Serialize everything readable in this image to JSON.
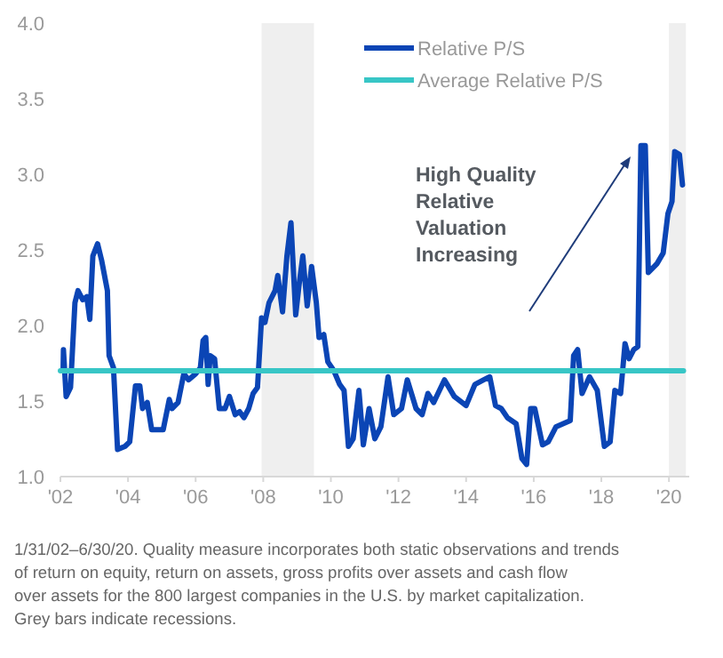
{
  "chart_data": {
    "type": "line",
    "xlim": [
      2002,
      2020.6
    ],
    "ylim": [
      1.0,
      4.0
    ],
    "xticks": [
      {
        "value": 2002,
        "label": "'02"
      },
      {
        "value": 2004,
        "label": "'04"
      },
      {
        "value": 2006,
        "label": "'06"
      },
      {
        "value": 2008,
        "label": "'08"
      },
      {
        "value": 2010,
        "label": "'10"
      },
      {
        "value": 2012,
        "label": "'12"
      },
      {
        "value": 2014,
        "label": "'14"
      },
      {
        "value": 2016,
        "label": "'16"
      },
      {
        "value": 2018,
        "label": "'18"
      },
      {
        "value": 2020,
        "label": "'20"
      }
    ],
    "yticks": [
      {
        "value": 1,
        "label": "1.0"
      },
      {
        "value": 1.5,
        "label": "1.5"
      },
      {
        "value": 2,
        "label": "2.0"
      },
      {
        "value": 2.5,
        "label": "2.5"
      },
      {
        "value": 3,
        "label": "3.0"
      },
      {
        "value": 3.5,
        "label": "3.5"
      },
      {
        "value": 4,
        "label": "4.0"
      }
    ],
    "legend": "top right",
    "grid": false,
    "marker": "none",
    "line_style": "solid",
    "bands": [
      {
        "axis": "x",
        "from": 2007.95,
        "to": 2009.5,
        "color": "#efefef"
      },
      {
        "axis": "x",
        "from": 2020.0,
        "to": 2020.5,
        "color": "#efefef"
      }
    ],
    "series": [
      {
        "name": "Relative P/S",
        "color": "#0b45b5",
        "x": [
          2002.08,
          2002.09,
          2002.17,
          2002.3,
          2002.43,
          2002.52,
          2002.66,
          2002.78,
          2002.87,
          2002.96,
          2003.1,
          2003.22,
          2003.39,
          2003.44,
          2003.57,
          2003.69,
          2003.91,
          2004.05,
          2004.22,
          2004.35,
          2004.43,
          2004.57,
          2004.7,
          2005.04,
          2005.22,
          2005.3,
          2005.48,
          2005.65,
          2005.79,
          2006.0,
          2006.14,
          2006.22,
          2006.3,
          2006.37,
          2006.43,
          2006.56,
          2006.7,
          2006.87,
          2007.0,
          2007.17,
          2007.3,
          2007.43,
          2007.57,
          2007.7,
          2007.83,
          2007.95,
          2008.05,
          2008.17,
          2008.35,
          2008.43,
          2008.57,
          2008.7,
          2008.82,
          2008.96,
          2009.06,
          2009.17,
          2009.3,
          2009.43,
          2009.57,
          2009.65,
          2009.79,
          2009.91,
          2010.09,
          2010.26,
          2010.39,
          2010.52,
          2010.66,
          2010.83,
          2010.96,
          2011.13,
          2011.3,
          2011.48,
          2011.69,
          2011.86,
          2012.09,
          2012.26,
          2012.52,
          2012.7,
          2012.87,
          2013.04,
          2013.36,
          2013.65,
          2014.0,
          2014.26,
          2014.52,
          2014.7,
          2014.87,
          2015.04,
          2015.22,
          2015.48,
          2015.65,
          2015.79,
          2015.91,
          2016.03,
          2016.26,
          2016.43,
          2016.66,
          2016.87,
          2017.08,
          2017.18,
          2017.3,
          2017.43,
          2017.65,
          2017.88,
          2018.09,
          2018.26,
          2018.4,
          2018.57,
          2018.7,
          2018.82,
          2018.96,
          2019.08,
          2019.17,
          2019.3,
          2019.39,
          2019.65,
          2019.83,
          2019.97,
          2020.09,
          2020.17,
          2020.31,
          2020.4
        ],
        "values": [
          1.7,
          1.84,
          1.53,
          1.59,
          2.15,
          2.23,
          2.17,
          2.19,
          2.04,
          2.46,
          2.54,
          2.43,
          2.23,
          1.8,
          1.72,
          1.18,
          1.2,
          1.23,
          1.6,
          1.6,
          1.45,
          1.49,
          1.31,
          1.31,
          1.51,
          1.45,
          1.49,
          1.68,
          1.64,
          1.68,
          1.72,
          1.9,
          1.92,
          1.61,
          1.8,
          1.78,
          1.45,
          1.45,
          1.53,
          1.41,
          1.43,
          1.39,
          1.45,
          1.55,
          1.59,
          2.05,
          2.02,
          2.15,
          2.23,
          2.33,
          2.09,
          2.46,
          2.68,
          2.07,
          2.27,
          2.46,
          2.13,
          2.39,
          2.15,
          1.92,
          1.94,
          1.76,
          1.7,
          1.61,
          1.57,
          1.2,
          1.25,
          1.57,
          1.21,
          1.45,
          1.25,
          1.33,
          1.66,
          1.41,
          1.45,
          1.64,
          1.45,
          1.41,
          1.55,
          1.49,
          1.64,
          1.53,
          1.47,
          1.61,
          1.64,
          1.66,
          1.47,
          1.45,
          1.39,
          1.35,
          1.12,
          1.08,
          1.45,
          1.45,
          1.21,
          1.23,
          1.33,
          1.35,
          1.37,
          1.8,
          1.84,
          1.55,
          1.66,
          1.57,
          1.2,
          1.23,
          1.57,
          1.55,
          1.88,
          1.78,
          1.84,
          1.86,
          3.19,
          3.19,
          2.35,
          2.41,
          2.48,
          2.74,
          2.82,
          3.15,
          3.13,
          2.93
        ]
      },
      {
        "name": "Average Relative P/S",
        "color": "#38c6c6",
        "x": [
          2002.0,
          2020.43
        ],
        "values": [
          1.7,
          1.7
        ]
      }
    ],
    "annotations": [
      "High Quality Relative Valuation Increasing",
      "1/31/02–6/30/20. Quality measure incorporates both static observations and trends of return on equity, return on assets, gross profits over assets and cash flow over assets for the 800 largest companies in the U.S. by market capitalization. Grey bars indicate recessions."
    ]
  }
}
